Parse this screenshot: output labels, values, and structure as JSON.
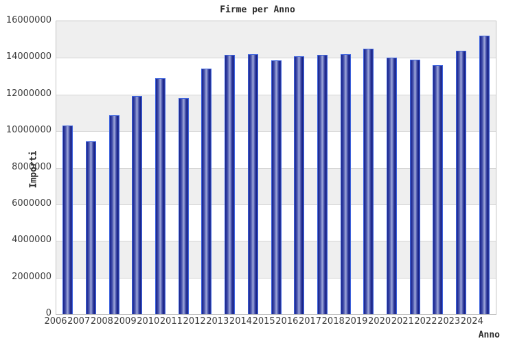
{
  "title": "Firme per Anno",
  "chart_data": {
    "type": "bar",
    "title": "Firme per Anno",
    "xlabel": "Anno",
    "ylabel": "Importi",
    "categories": [
      "2006",
      "2007",
      "2008",
      "2009",
      "2010",
      "2011",
      "2012",
      "2013",
      "2014",
      "2015",
      "2016",
      "2017",
      "2018",
      "2019",
      "2020",
      "2021",
      "2022",
      "2023",
      "2024"
    ],
    "values": [
      10300000,
      9450000,
      10850000,
      11900000,
      12900000,
      11800000,
      13400000,
      14150000,
      14200000,
      13850000,
      14100000,
      14150000,
      14200000,
      14500000,
      14000000,
      13900000,
      13600000,
      14400000,
      15200000
    ],
    "ylim": [
      0,
      16000000
    ],
    "ytick_step": 2000000,
    "ytick_labels": [
      "0",
      "2000000",
      "4000000",
      "6000000",
      "8000000",
      "10000000",
      "12000000",
      "14000000",
      "16000000"
    ],
    "grid": "horizontal",
    "legend": "none",
    "band_colors": [
      "#efefef",
      "#ffffff"
    ],
    "colors": {
      "bar_border": "#3e63dd",
      "bar_dark": "#1a2486",
      "bar_light": "#9aa3d8",
      "gridline": "#d4d4d4",
      "plot_border": "#c2c2c2",
      "text": "#3a3a3a"
    }
  }
}
